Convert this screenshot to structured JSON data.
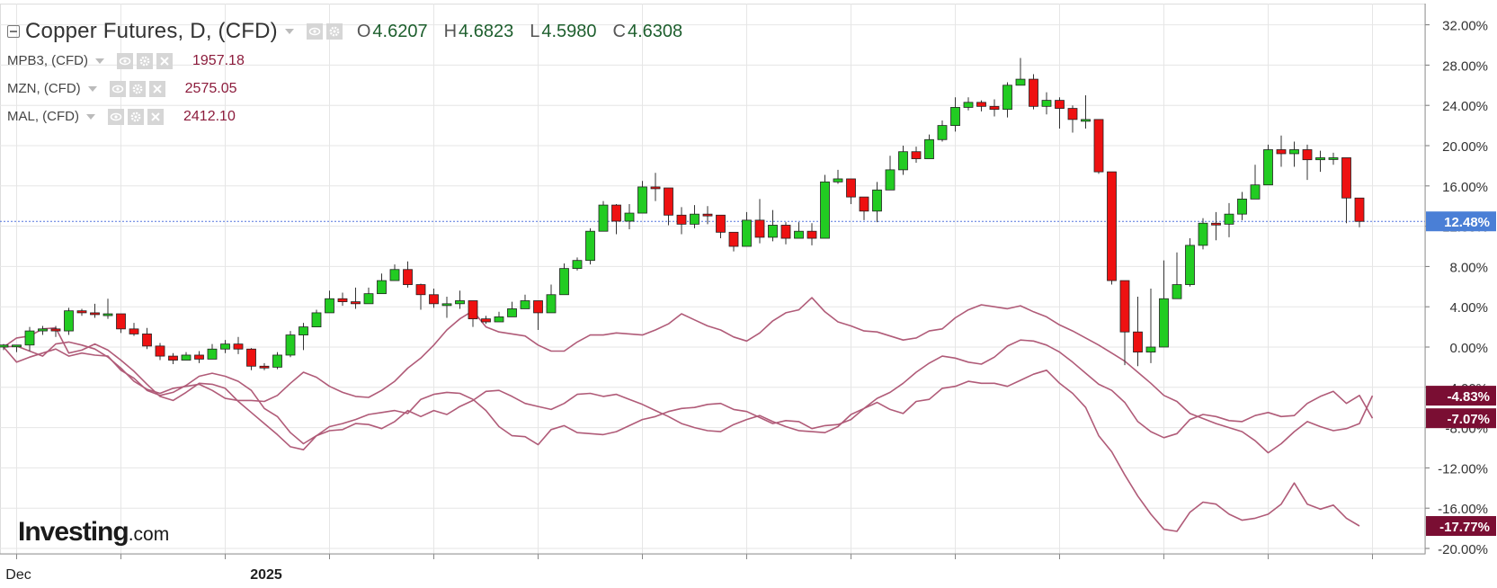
{
  "legend": {
    "main_title": "Copper Futures, D, (CFD)",
    "ohlc": [
      {
        "key": "O",
        "value": "4.6207"
      },
      {
        "key": "H",
        "value": "4.6823"
      },
      {
        "key": "L",
        "value": "4.5980"
      },
      {
        "key": "C",
        "value": "4.6308"
      }
    ],
    "comparisons": [
      {
        "name": "MPB3, (CFD)",
        "value": "1957.18"
      },
      {
        "name": "MZN, (CFD)",
        "value": "2575.05"
      },
      {
        "name": "MAL, (CFD)",
        "value": "2412.10"
      }
    ]
  },
  "watermark": {
    "brand": "Investing",
    "suffix": ".com"
  },
  "colors": {
    "up": "#22cc22",
    "down": "#ee1111",
    "compare_line": "#b05b78",
    "label_bg": "#7a0e33",
    "price_line": "#5577dd",
    "price_label_bg": "#4a7fd6",
    "grid": "#e6e6e6"
  },
  "chart_data": {
    "type": "line",
    "y_unit": "percent change",
    "ylim": [
      -21,
      34
    ],
    "y_ticks": [
      "32.00%",
      "28.00%",
      "24.00%",
      "20.00%",
      "16.00%",
      "12.00%",
      "8.00%",
      "4.00%",
      "0.00%",
      "-4.00%",
      "-8.00%",
      "-12.00%",
      "-16.00%",
      "-20.00%"
    ],
    "x_labels": [
      {
        "index": 1,
        "label": "Dec"
      },
      {
        "index": 20,
        "label": "2025"
      }
    ],
    "last_labels": [
      "12.48%",
      "-4.83%",
      "-7.07%",
      "-17.77%"
    ],
    "price_line": 12.48,
    "candles": [
      [
        0,
        -0.1,
        0.2,
        0.3,
        -0.3
      ],
      [
        -0.1,
        -0.2,
        0.2,
        -0.3,
        -0.5
      ],
      [
        -0.2,
        1.3,
        1.6,
        2.0,
        -0.4
      ],
      [
        1.3,
        1.7,
        1.8,
        2.1,
        1.2
      ],
      [
        1.7,
        1.4,
        1.6,
        2.1,
        1.0
      ],
      [
        1.4,
        3.3,
        3.6,
        3.9,
        1.2
      ],
      [
        3.3,
        3.5,
        3.4,
        3.8,
        3.1
      ],
      [
        3.5,
        4.0,
        3.3,
        4.3,
        2.9
      ],
      [
        4.0,
        3.0,
        3.3,
        4.8,
        2.8
      ],
      [
        3.0,
        2.3,
        1.8,
        2.5,
        1.4
      ],
      [
        2.3,
        1.9,
        1.3,
        2.4,
        1.1
      ],
      [
        1.9,
        1.5,
        0.1,
        1.9,
        -0.2
      ],
      [
        1.5,
        0,
        -0.9,
        0.4,
        -1.3
      ],
      [
        0,
        -1.1,
        -1.3,
        -0.6,
        -1.7
      ],
      [
        -1.1,
        -0.9,
        -0.8,
        -0.5,
        -1.2
      ],
      [
        -0.9,
        -0.8,
        -1.2,
        -0.4,
        -1.6
      ],
      [
        -0.8,
        -0.5,
        -0.2,
        0.3,
        -0.9
      ],
      [
        -0.5,
        -0.3,
        0.3,
        0.7,
        -0.6
      ],
      [
        -0.3,
        0.2,
        -0.2,
        1.0,
        -0.7
      ],
      [
        0.2,
        -1.2,
        -1.9,
        -0.1,
        -2.3
      ],
      [
        -1.2,
        -2.0,
        -2.0,
        -1.6,
        -2.3
      ],
      [
        -2.0,
        -1.8,
        -0.8,
        -0.5,
        -2.2
      ],
      [
        -1.8,
        -1.5,
        1.2,
        1.6,
        -1.0
      ],
      [
        -1.5,
        -1.3,
        2.0,
        2.4,
        -0.3
      ],
      [
        -1.3,
        -1.0,
        3.4,
        3.7,
        2.3
      ],
      [
        -1.0,
        -0.8,
        4.8,
        5.6,
        4.6
      ],
      [
        -0.8,
        -0.7,
        4.5,
        5.4,
        4.1
      ],
      [
        -0.7,
        -0.4,
        4.3,
        5.9,
        3.8
      ],
      [
        -0.4,
        -0.2,
        5.3,
        5.9,
        4.7
      ],
      [
        -0.2,
        0.0,
        6.6,
        7.3,
        5.4
      ],
      [
        0.0,
        0.3,
        7.7,
        8.2,
        6.8
      ],
      [
        0.3,
        0.4,
        6.2,
        8.5,
        5.9
      ],
      [
        0.4,
        0.1,
        5.2,
        6.3,
        3.7
      ],
      [
        0.1,
        -0.2,
        4.3,
        5.8,
        3.9
      ],
      [
        -0.2,
        -0.6,
        4.3,
        5.0,
        2.9
      ],
      [
        -0.6,
        -0.9,
        4.6,
        5.6,
        3.8
      ],
      [
        -0.9,
        -1.1,
        2.8,
        3.8,
        2.0
      ],
      [
        -1.1,
        -1.3,
        2.5,
        3.1,
        2.3
      ],
      [
        -1.3,
        -1.1,
        3.0,
        3.5,
        2.6
      ],
      [
        -1.1,
        -0.6,
        3.8,
        4.5,
        3.3
      ],
      [
        -0.6,
        -0.4,
        4.6,
        5.2,
        3.8
      ],
      [
        -0.4,
        -0.2,
        3.4,
        4.6,
        1.7
      ],
      [
        -0.2,
        0.1,
        5.2,
        6.2,
        4.9
      ],
      [
        0.1,
        0.3,
        7.8,
        8.3,
        5.3
      ],
      [
        0.3,
        0.0,
        8.6,
        8.9,
        7.6
      ],
      [
        0.0,
        -0.2,
        11.5,
        11.8,
        8.2
      ],
      [
        -0.2,
        -0.7,
        14.1,
        14.5,
        11.9
      ],
      [
        -0.7,
        -0.9,
        12.5,
        14.2,
        11.2
      ],
      [
        -0.9,
        -1.2,
        13.3,
        14.2,
        11.7
      ],
      [
        -1.2,
        -0.8,
        15.9,
        16.5,
        14.1
      ],
      [
        -0.8,
        -0.6,
        15.8,
        17.3,
        14.5
      ],
      [
        -0.6,
        -0.5,
        13.1,
        14.8,
        12.1
      ],
      [
        -0.5,
        -0.3,
        12.2,
        13.9,
        11.2
      ],
      [
        -0.3,
        0.0,
        13.2,
        14.1,
        11.8
      ],
      [
        0.0,
        0.2,
        13.1,
        14.0,
        12.2
      ],
      [
        0.2,
        0.5,
        11.4,
        12.6,
        10.8
      ],
      [
        0.5,
        0.8,
        10.0,
        11.0,
        9.5
      ],
      [
        0.8,
        1.1,
        12.6,
        13.4,
        10.0
      ],
      [
        1.1,
        1.0,
        10.9,
        14.7,
        10.3
      ],
      [
        1.0,
        0.8,
        12.1,
        13.6,
        10.5
      ],
      [
        0.8,
        0.4,
        10.8,
        12.4,
        10.2
      ],
      [
        0.4,
        0.1,
        11.5,
        12.4,
        10.8
      ],
      [
        0.1,
        -0.1,
        10.8,
        12.3,
        10.1
      ],
      [
        -0.1,
        0.1,
        16.4,
        17.1,
        10.8
      ],
      [
        0.1,
        0.4,
        16.7,
        17.6,
        16.2
      ],
      [
        0.4,
        0.7,
        14.9,
        15.9,
        14.2
      ],
      [
        0.7,
        0.9,
        13.5,
        14.9,
        12.6
      ],
      [
        0.9,
        1.0,
        15.6,
        16.4,
        12.4
      ],
      [
        1.0,
        1.1,
        17.6,
        19.0,
        16.4
      ],
      [
        1.1,
        1.3,
        19.4,
        20.0,
        17.1
      ],
      [
        1.3,
        1.6,
        18.7,
        19.9,
        18.3
      ],
      [
        1.6,
        1.8,
        20.6,
        21.1,
        19.4
      ],
      [
        1.8,
        1.6,
        22.0,
        22.5,
        20.4
      ],
      [
        1.6,
        1.2,
        23.8,
        24.8,
        21.4
      ],
      [
        1.2,
        1.0,
        24.3,
        24.8,
        23.5
      ],
      [
        1.0,
        0.8,
        23.9,
        24.5,
        23.4
      ],
      [
        0.8,
        0.6,
        23.6,
        24.6,
        22.9
      ],
      [
        0.6,
        0.7,
        26.0,
        26.3,
        22.8
      ],
      [
        0.7,
        0.5,
        26.6,
        28.7,
        26.4
      ],
      [
        0.5,
        -0.3,
        23.9,
        27.1,
        23.6
      ],
      [
        -0.3,
        -0.9,
        24.5,
        25.3,
        23.1
      ],
      [
        -0.9,
        -1.6,
        23.7,
        24.8,
        21.7
      ],
      [
        -1.6,
        -2.4,
        22.6,
        24.0,
        21.3
      ],
      [
        -2.4,
        -3.4,
        22.6,
        25.0,
        21.7
      ],
      [
        -3.4,
        -4.3,
        17.4,
        21.6,
        17.2
      ],
      [
        -4.3,
        -5.5,
        6.6,
        17.4,
        6.2
      ],
      [
        -5.5,
        -7.4,
        1.5,
        6.6,
        -1.8
      ],
      [
        -7.4,
        -8.4,
        -0.5,
        5.0,
        -1.9
      ],
      [
        -8.4,
        -9.0,
        0.0,
        5.8,
        -1.6
      ],
      [
        -9.0,
        -8.6,
        4.8,
        8.6,
        4.4
      ],
      [
        -8.6,
        -7.2,
        6.2,
        9.4,
        5.1
      ],
      [
        -7.2,
        -6.7,
        10.1,
        10.8,
        6.0
      ],
      [
        -6.7,
        -6.9,
        12.3,
        12.8,
        9.7
      ],
      [
        -6.9,
        -7.3,
        12.2,
        13.4,
        10.6
      ],
      [
        -7.3,
        -7.4,
        13.2,
        14.3,
        10.9
      ],
      [
        -7.4,
        -6.8,
        14.7,
        15.4,
        12.6
      ],
      [
        -6.8,
        -6.5,
        16.1,
        18.1,
        15.1
      ],
      [
        -6.5,
        -6.9,
        19.6,
        20.1,
        16.1
      ],
      [
        -6.9,
        -6.8,
        19.2,
        21.0,
        17.9
      ],
      [
        -6.8,
        -5.6,
        19.6,
        20.4,
        17.9
      ],
      [
        -5.6,
        -4.9,
        18.6,
        20.1,
        16.6
      ],
      [
        -4.9,
        -4.4,
        18.8,
        19.5,
        17.4
      ],
      [
        -4.4,
        -5.6,
        18.8,
        19.3,
        18.1
      ],
      [
        -5.6,
        -4.8,
        14.8,
        14.8,
        12.3
      ],
      [
        -4.8,
        -7.07,
        12.48,
        13.6,
        11.9
      ]
    ],
    "series": [
      {
        "name": "MPB3, (CFD)",
        "values": [
          0,
          0.9,
          1.1,
          1.8,
          1.9,
          -0.6,
          -0.3,
          0.3,
          -0.3,
          -1.3,
          -2.4,
          -3.7,
          -4.9,
          -5.3,
          -4.5,
          -3.6,
          -3.7,
          -4.1,
          -5.4,
          -6.5,
          -7.6,
          -8.7,
          -9.9,
          -10.2,
          -8.8,
          -7.9,
          -7.6,
          -7.2,
          -6.7,
          -6.5,
          -6.3,
          -6.6,
          -5.2,
          -4.7,
          -4.5,
          -4.6,
          -5.2,
          -6.3,
          -7.9,
          -8.8,
          -8.9,
          -9.7,
          -8.2,
          -7.8,
          -8.5,
          -8.6,
          -8.7,
          -8.4,
          -7.8,
          -7.2,
          -6.9,
          -6.4,
          -6.1,
          -6.0,
          -5.7,
          -5.6,
          -6.2,
          -6.4,
          -7.0,
          -7.6,
          -7.3,
          -7.4,
          -8.1,
          -7.8,
          -7.7,
          -7.2,
          -6.1,
          -5.1,
          -4.5,
          -3.6,
          -2.5,
          -1.6,
          -0.9,
          -1.1,
          -1.5,
          -1.7,
          -1.0,
          0.1,
          0.7,
          0.6,
          0.2,
          -0.5,
          -1.5,
          -2.6,
          -3.7,
          -4.3,
          -5.5,
          -7.4,
          -8.4,
          -9.0,
          -8.6,
          -7.2,
          -6.7,
          -6.9,
          -7.3,
          -7.4,
          -6.8,
          -6.5,
          -6.9,
          -6.8,
          -5.6,
          -4.9,
          -4.4,
          -5.6,
          -4.8,
          -7.07
        ]
      },
      {
        "name": "MZN, (CFD)",
        "values": [
          0,
          -1.5,
          -1.0,
          -0.6,
          -0.2,
          -0.9,
          -0.6,
          -0.8,
          -0.9,
          -2.3,
          -3.1,
          -4.3,
          -4.8,
          -4.5,
          -3.8,
          -2.9,
          -2.6,
          -2.9,
          -3.4,
          -4.3,
          -6.1,
          -6.9,
          -8.5,
          -9.6,
          -8.8,
          -8.3,
          -8.2,
          -7.6,
          -7.7,
          -8.1,
          -7.4,
          -6.3,
          -6.9,
          -6.3,
          -6.7,
          -5.9,
          -5.3,
          -4.4,
          -4.3,
          -4.9,
          -5.6,
          -5.9,
          -6.2,
          -5.6,
          -4.7,
          -4.6,
          -4.9,
          -4.7,
          -5.2,
          -5.7,
          -6.3,
          -6.9,
          -7.6,
          -8.0,
          -8.3,
          -8.4,
          -7.7,
          -7.2,
          -6.8,
          -7.4,
          -7.9,
          -8.3,
          -8.4,
          -8.5,
          -7.9,
          -6.7,
          -6.1,
          -5.5,
          -6.2,
          -6.6,
          -5.4,
          -5.2,
          -4.1,
          -3.9,
          -3.4,
          -3.6,
          -3.6,
          -3.9,
          -3.3,
          -2.7,
          -2.3,
          -3.6,
          -4.6,
          -6.0,
          -8.8,
          -10.4,
          -12.7,
          -14.8,
          -16.6,
          -18.1,
          -18.3,
          -16.4,
          -15.4,
          -15.6,
          -16.6,
          -17.2,
          -17.0,
          -16.6,
          -15.6,
          -13.5,
          -15.6,
          -16.1,
          -15.7,
          -17.0,
          -17.77
        ]
      },
      {
        "name": "MAL, (CFD)",
        "values": [
          0,
          0.1,
          -0.4,
          -0.9,
          0.3,
          0.5,
          0.2,
          -0.2,
          -1.0,
          -2.1,
          -3.4,
          -4.2,
          -4.6,
          -4.1,
          -3.9,
          -3.7,
          -4.3,
          -5.1,
          -5.3,
          -5.3,
          -5.4,
          -4.8,
          -3.6,
          -2.5,
          -3.0,
          -3.9,
          -4.5,
          -4.9,
          -5.0,
          -4.3,
          -3.4,
          -2.1,
          -1.1,
          0.2,
          1.7,
          2.8,
          3.6,
          2.0,
          1.5,
          1.3,
          1.1,
          0.2,
          -0.4,
          -0.4,
          0.5,
          1.2,
          1.2,
          1.4,
          1.3,
          1.2,
          1.7,
          2.3,
          3.3,
          2.7,
          2.1,
          1.7,
          1.0,
          0.6,
          1.4,
          2.6,
          3.4,
          3.7,
          4.9,
          3.5,
          2.5,
          2.1,
          1.6,
          1.5,
          1.1,
          0.7,
          0.9,
          1.6,
          1.8,
          2.9,
          3.7,
          4.2,
          4.0,
          3.8,
          4.1,
          3.5,
          3.0,
          2.2,
          1.6,
          0.9,
          0.2,
          -0.6,
          -1.4,
          -2.5,
          -3.6,
          -4.8,
          -5.4,
          -6.6,
          -7.1,
          -7.6,
          -8.0,
          -8.4,
          -9.3,
          -10.5,
          -9.6,
          -8.4,
          -7.4,
          -7.9,
          -8.3,
          -8.1,
          -7.6,
          -4.83
        ]
      }
    ]
  }
}
